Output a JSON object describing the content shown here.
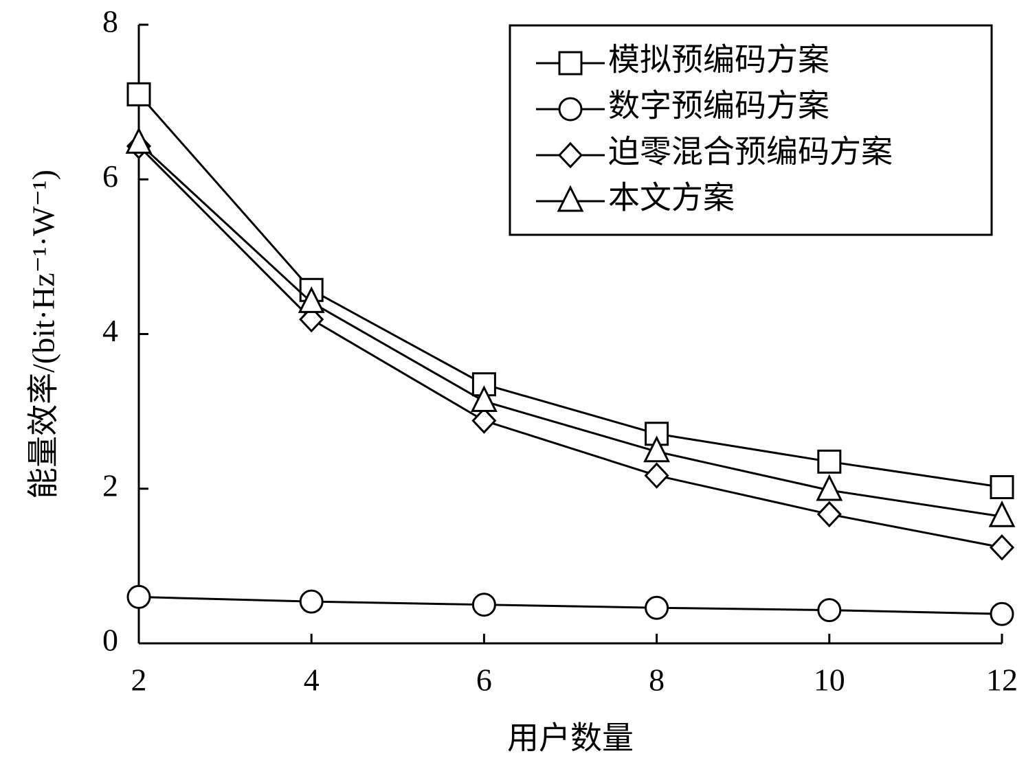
{
  "chart_data": {
    "type": "line",
    "x_label": "用户数量",
    "y_label": "能量效率/(bit·Hz⁻¹·W⁻¹)",
    "x": [
      2,
      4,
      6,
      8,
      10,
      12
    ],
    "xlim": [
      2,
      12
    ],
    "xticks": [
      2,
      4,
      6,
      8,
      10,
      12
    ],
    "ylim": [
      0,
      8
    ],
    "yticks": [
      0,
      2,
      4,
      6,
      8
    ],
    "legend": "upper right",
    "series": [
      {
        "name": "模拟预编码方案",
        "color": "#000000",
        "marker": "square",
        "values": [
          7.1,
          4.57,
          3.35,
          2.71,
          2.35,
          2.02
        ]
      },
      {
        "name": "数字预编码方案",
        "color": "#000000",
        "marker": "circle",
        "values": [
          0.6,
          0.54,
          0.5,
          0.46,
          0.43,
          0.38
        ]
      },
      {
        "name": "迫零混合预编码方案",
        "color": "#000000",
        "marker": "diamond",
        "values": [
          6.43,
          4.19,
          2.88,
          2.17,
          1.67,
          1.24
        ]
      },
      {
        "name": "本文方案",
        "color": "#000000",
        "marker": "triangle",
        "values": [
          6.47,
          4.41,
          3.13,
          2.48,
          1.98,
          1.64
        ]
      }
    ]
  }
}
